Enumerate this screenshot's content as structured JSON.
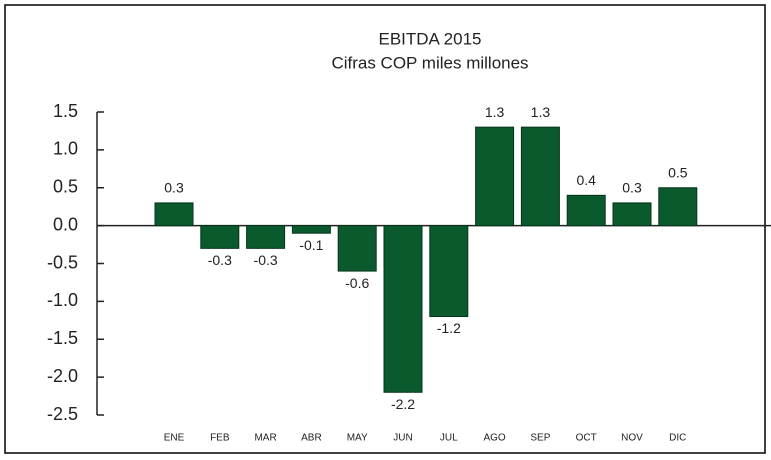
{
  "chart_data": {
    "type": "bar",
    "title": "EBITDA 2015",
    "subtitle": "Cifras COP miles millones",
    "categories": [
      "ENE",
      "FEB",
      "MAR",
      "ABR",
      "MAY",
      "JUN",
      "JUL",
      "AGO",
      "SEP",
      "OCT",
      "NOV",
      "DIC"
    ],
    "values": [
      0.3,
      -0.3,
      -0.3,
      -0.1,
      -0.6,
      -2.2,
      -1.2,
      1.3,
      1.3,
      0.4,
      0.3,
      0.5
    ],
    "color": "#0b5a2e",
    "ylim": [
      -2.5,
      1.5
    ],
    "yticks": [
      1.5,
      {
        "value": 1,
        "label": "1.0"
      },
      0.5,
      {
        "value": 0,
        "label": "0.0"
      },
      -0.5,
      {
        "value": -1,
        "label": "-1.0"
      },
      -1.5,
      {
        "value": -2,
        "label": "-2.0"
      },
      -2.5
    ],
    "grid": false
  }
}
